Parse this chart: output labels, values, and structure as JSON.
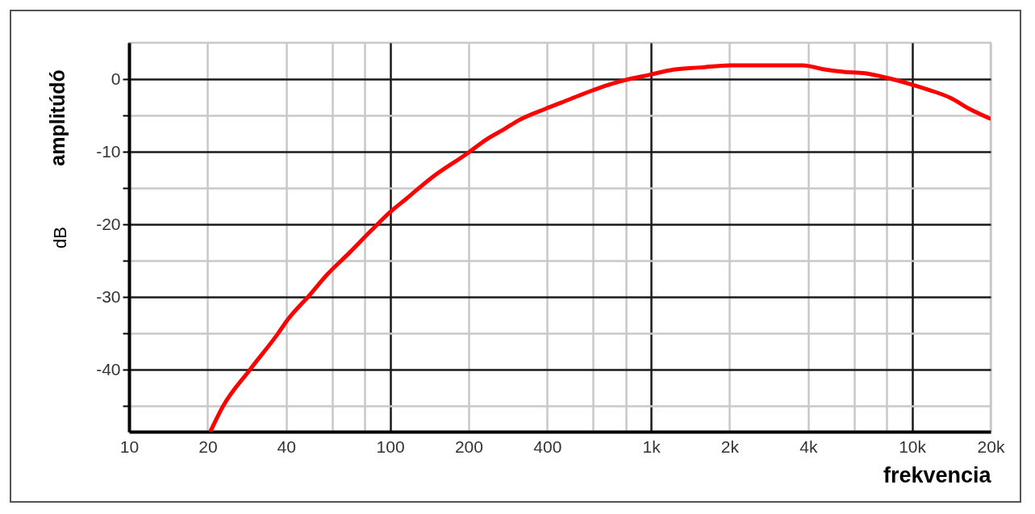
{
  "chart_data": {
    "type": "line",
    "xlabel": "frekvencia",
    "ylabel": "dB",
    "annotations": [
      "amplitúdó"
    ],
    "x": [
      20.6,
      22.9,
      29.0,
      37.2,
      40.5,
      48.9,
      57.7,
      69.8,
      84.3,
      100,
      115,
      145,
      198,
      234,
      276,
      310,
      393,
      486,
      601,
      782,
      988,
      1220,
      1550,
      2000,
      3820,
      4510,
      5450,
      6590,
      7970,
      9860,
      11640,
      14070,
      16600,
      19820
    ],
    "series": [
      {
        "color": "#ff0000",
        "values": [
          -48.3,
          -45.0,
          -40.0,
          -35.0,
          -33.1,
          -29.8,
          -26.8,
          -23.9,
          -20.9,
          -18.3,
          -16.5,
          -13.5,
          -10.2,
          -8.3,
          -6.8,
          -5.7,
          -4.1,
          -2.8,
          -1.5,
          -0.2,
          0.6,
          1.3,
          1.6,
          1.9,
          1.9,
          1.4,
          1.0,
          0.8,
          0.2,
          -0.7,
          -1.5,
          -2.6,
          -4.1,
          -5.4
        ]
      }
    ],
    "log": "x",
    "xlim": [
      10,
      20000
    ],
    "xticks": [
      10,
      20,
      40,
      {
        "value": 60,
        "label": null
      },
      {
        "value": 80,
        "label": null
      },
      100,
      200,
      400,
      {
        "value": 600,
        "label": null
      },
      {
        "value": 800,
        "label": null
      },
      {
        "value": 1000,
        "label": "1k"
      },
      {
        "value": 2000,
        "label": "2k"
      },
      {
        "value": 4000,
        "label": "4k"
      },
      {
        "value": 6000,
        "label": null
      },
      {
        "value": 8000,
        "label": null
      },
      {
        "value": 10000,
        "label": "10k"
      },
      {
        "value": 20000,
        "label": "20k"
      }
    ],
    "ylim": [
      -48.5,
      5
    ],
    "yticks": [
      {
        "value": -45,
        "label": null
      },
      -40,
      {
        "value": -35,
        "label": null
      },
      -30,
      {
        "value": -25,
        "label": null
      },
      -20,
      {
        "value": -15,
        "label": null
      },
      -10,
      {
        "value": -5,
        "label": null
      },
      0
    ],
    "grid": true
  }
}
